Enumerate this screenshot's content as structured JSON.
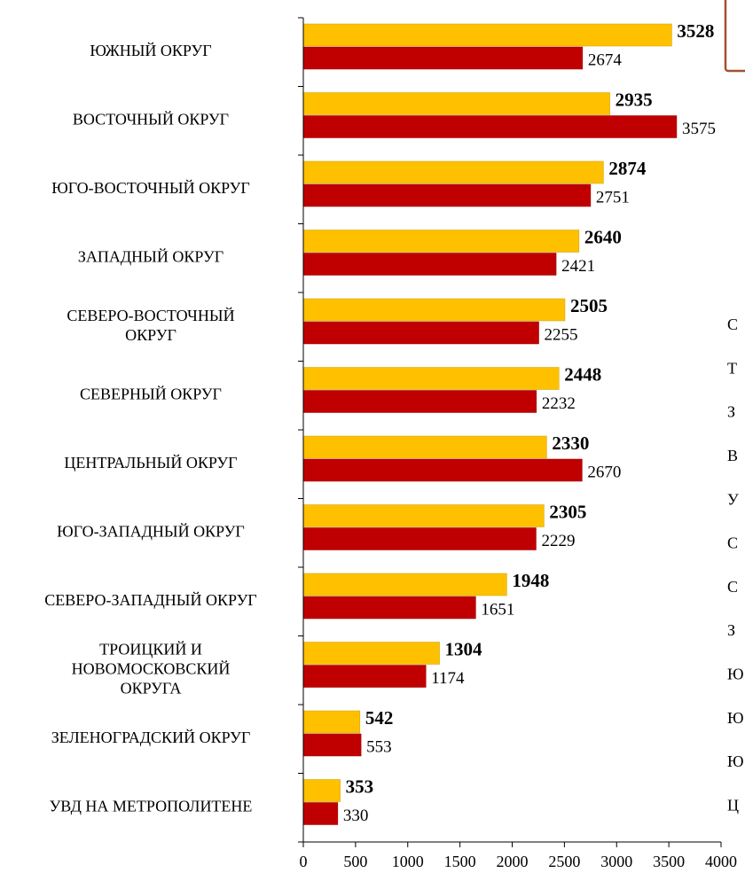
{
  "chart_data": {
    "type": "barh",
    "categories": [
      "ЮЖНЫЙ ОКРУГ",
      "ВОСТОЧНЫЙ ОКРУГ",
      "ЮГО-ВОСТОЧНЫЙ ОКРУГ",
      "ЗАПАДНЫЙ ОКРУГ",
      "СЕВЕРО-ВОСТОЧНЫЙ\nОКРУГ",
      "СЕВЕРНЫЙ ОКРУГ",
      "ЦЕНТРАЛЬНЫЙ ОКРУГ",
      "ЮГО-ЗАПАДНЫЙ ОКРУГ",
      "СЕВЕРО-ЗАПАДНЫЙ ОКРУГ",
      "ТРОИЦКИЙ И\nНОВОМОСКОВСКИЙ\nОКРУГА",
      "ЗЕЛЕНОГРАДСКИЙ ОКРУГ",
      "УВД НА МЕТРОПОЛИТЕНЕ"
    ],
    "series": [
      {
        "color": "#ffc000",
        "values": [
          3528,
          2935,
          2874,
          2640,
          2505,
          2448,
          2330,
          2305,
          1948,
          1304,
          542,
          353
        ]
      },
      {
        "color": "#c00000",
        "values": [
          2674,
          3575,
          2751,
          2421,
          2255,
          2232,
          2670,
          2229,
          1651,
          1174,
          553,
          330
        ]
      }
    ],
    "xlim": [
      0,
      4000
    ],
    "xticks": [
      0,
      500,
      1000,
      1500,
      2000,
      2500,
      3000,
      3500,
      4000
    ]
  },
  "overflow_labels": [
    "С",
    "Т",
    "З",
    "В",
    "У",
    "С",
    "С",
    "З",
    "Ю",
    "Ю",
    "Ю",
    "Ц"
  ]
}
